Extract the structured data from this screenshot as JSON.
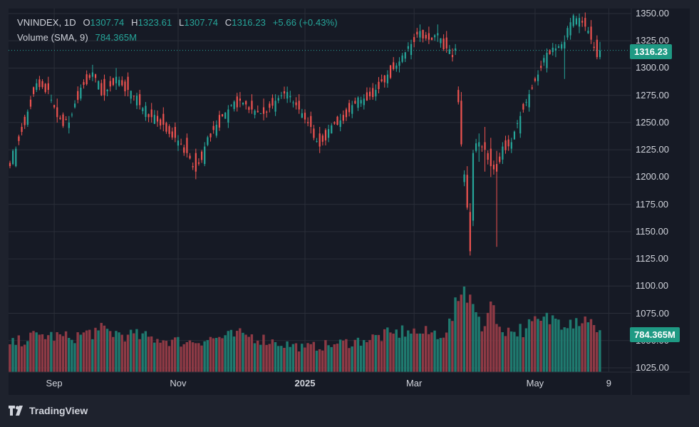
{
  "legend": {
    "symbol": "VNINDEX, 1D",
    "o_label": "O",
    "open": "1307.74",
    "h_label": "H",
    "high": "1323.61",
    "l_label": "L",
    "low": "1307.74",
    "c_label": "C",
    "close": "1316.23",
    "change": "+5.66 (+0.43%)",
    "volume_label": "Volume (SMA, 9)",
    "volume_value": "784.365M"
  },
  "price_tag": "1316.23",
  "volume_tag": "784.365M",
  "brand": "TradingView",
  "colors": {
    "up": "#26a69a",
    "down": "#ef5350",
    "up_volume": "#1f7a6f",
    "down_volume": "#8e3a45",
    "background": "#1e222d",
    "pane": "#161a25",
    "grid": "#2a2e39",
    "price_line": "#26a69a"
  },
  "chart_data": {
    "type": "candlestick",
    "title": "VNINDEX, 1D",
    "y_ticks": [
      "1350.00",
      "1325.00",
      "1300.00",
      "1275.00",
      "1250.00",
      "1225.00",
      "1200.00",
      "1175.00",
      "1150.00",
      "1125.00",
      "1100.00",
      "1075.00",
      "1050.00",
      "1025.00"
    ],
    "ylim": [
      1021,
      1352
    ],
    "x_ticks": [
      {
        "label": "Sep",
        "index": 15,
        "bold": false
      },
      {
        "label": "Nov",
        "index": 57,
        "bold": false
      },
      {
        "label": "2025",
        "index": 100,
        "bold": true
      },
      {
        "label": "Mar",
        "index": 137,
        "bold": false
      },
      {
        "label": "May",
        "index": 178,
        "bold": false
      },
      {
        "label": "9",
        "index": 203,
        "bold": false
      }
    ],
    "price_ohlc_anchors": [
      [
        0,
        1213,
        1215,
        1208,
        1210
      ],
      [
        2,
        1210,
        1228,
        1209,
        1226
      ],
      [
        6,
        1248,
        1262,
        1246,
        1260
      ],
      [
        9,
        1280,
        1290,
        1278,
        1286
      ],
      [
        13,
        1286,
        1292,
        1276,
        1280
      ],
      [
        16,
        1264,
        1272,
        1250,
        1255
      ],
      [
        20,
        1245,
        1256,
        1240,
        1250
      ],
      [
        24,
        1272,
        1285,
        1270,
        1282
      ],
      [
        28,
        1292,
        1303,
        1288,
        1296
      ],
      [
        32,
        1290,
        1294,
        1270,
        1275
      ],
      [
        36,
        1286,
        1300,
        1280,
        1292
      ],
      [
        40,
        1292,
        1296,
        1274,
        1280
      ],
      [
        44,
        1276,
        1280,
        1262,
        1266
      ],
      [
        48,
        1262,
        1268,
        1250,
        1255
      ],
      [
        52,
        1258,
        1264,
        1242,
        1248
      ],
      [
        56,
        1246,
        1250,
        1232,
        1236
      ],
      [
        60,
        1236,
        1240,
        1218,
        1222
      ],
      [
        63,
        1222,
        1226,
        1198,
        1205
      ],
      [
        66,
        1212,
        1232,
        1210,
        1228
      ],
      [
        70,
        1238,
        1252,
        1236,
        1248
      ],
      [
        74,
        1250,
        1266,
        1245,
        1262
      ],
      [
        78,
        1272,
        1278,
        1264,
        1270
      ],
      [
        82,
        1270,
        1276,
        1258,
        1262
      ],
      [
        86,
        1264,
        1272,
        1252,
        1258
      ],
      [
        90,
        1260,
        1276,
        1256,
        1270
      ],
      [
        94,
        1272,
        1283,
        1268,
        1278
      ],
      [
        98,
        1270,
        1276,
        1258,
        1262
      ],
      [
        102,
        1256,
        1260,
        1240,
        1246
      ],
      [
        105,
        1240,
        1246,
        1222,
        1228
      ],
      [
        108,
        1236,
        1248,
        1232,
        1244
      ],
      [
        112,
        1246,
        1258,
        1242,
        1252
      ],
      [
        116,
        1258,
        1270,
        1254,
        1266
      ],
      [
        120,
        1266,
        1276,
        1262,
        1272
      ],
      [
        124,
        1274,
        1285,
        1270,
        1280
      ],
      [
        128,
        1286,
        1298,
        1282,
        1294
      ],
      [
        132,
        1302,
        1310,
        1296,
        1306
      ],
      [
        136,
        1312,
        1326,
        1308,
        1322
      ],
      [
        139,
        1328,
        1340,
        1324,
        1334
      ],
      [
        142,
        1332,
        1338,
        1322,
        1326
      ],
      [
        145,
        1330,
        1340,
        1324,
        1332
      ],
      [
        148,
        1328,
        1334,
        1314,
        1318
      ],
      [
        150,
        1312,
        1318,
        1306,
        1310
      ],
      [
        151,
        1316,
        1322,
        1312,
        1318
      ],
      [
        153,
        1270,
        1278,
        1228,
        1230
      ],
      [
        155,
        1202,
        1210,
        1170,
        1172
      ],
      [
        156,
        1168,
        1176,
        1128,
        1132
      ],
      [
        157,
        1160,
        1225,
        1155,
        1222
      ],
      [
        159,
        1228,
        1240,
        1214,
        1232
      ],
      [
        161,
        1232,
        1246,
        1205,
        1225
      ],
      [
        163,
        1226,
        1236,
        1200,
        1210
      ],
      [
        165,
        1212,
        1224,
        1136,
        1205
      ],
      [
        167,
        1216,
        1232,
        1212,
        1228
      ],
      [
        170,
        1226,
        1236,
        1222,
        1232
      ],
      [
        173,
        1240,
        1260,
        1236,
        1256
      ],
      [
        176,
        1264,
        1280,
        1260,
        1276
      ],
      [
        179,
        1288,
        1298,
        1284,
        1294
      ],
      [
        182,
        1300,
        1318,
        1296,
        1314
      ],
      [
        185,
        1316,
        1322,
        1310,
        1318
      ],
      [
        188,
        1318,
        1330,
        1290,
        1324
      ],
      [
        190,
        1330,
        1346,
        1326,
        1342
      ],
      [
        193,
        1338,
        1350,
        1332,
        1346
      ],
      [
        195,
        1346,
        1351,
        1334,
        1338
      ],
      [
        197,
        1338,
        1344,
        1322,
        1326
      ],
      [
        199,
        1326,
        1330,
        1308,
        1310
      ],
      [
        200,
        1310,
        1324,
        1308,
        1316
      ]
    ],
    "volume_scale_max": 1600,
    "volume_anchors_millions": [
      [
        0,
        520
      ],
      [
        10,
        700
      ],
      [
        20,
        640
      ],
      [
        30,
        780
      ],
      [
        40,
        700
      ],
      [
        50,
        620
      ],
      [
        60,
        560
      ],
      [
        70,
        640
      ],
      [
        80,
        700
      ],
      [
        90,
        560
      ],
      [
        100,
        460
      ],
      [
        110,
        520
      ],
      [
        120,
        600
      ],
      [
        130,
        720
      ],
      [
        135,
        780
      ],
      [
        140,
        720
      ],
      [
        148,
        740
      ],
      [
        153,
        1450
      ],
      [
        154,
        1600
      ],
      [
        156,
        1450
      ],
      [
        158,
        1120
      ],
      [
        161,
        860
      ],
      [
        163,
        1320
      ],
      [
        165,
        900
      ],
      [
        170,
        760
      ],
      [
        175,
        820
      ],
      [
        180,
        960
      ],
      [
        185,
        1000
      ],
      [
        190,
        980
      ],
      [
        195,
        1040
      ],
      [
        198,
        880
      ],
      [
        200,
        784
      ]
    ]
  }
}
